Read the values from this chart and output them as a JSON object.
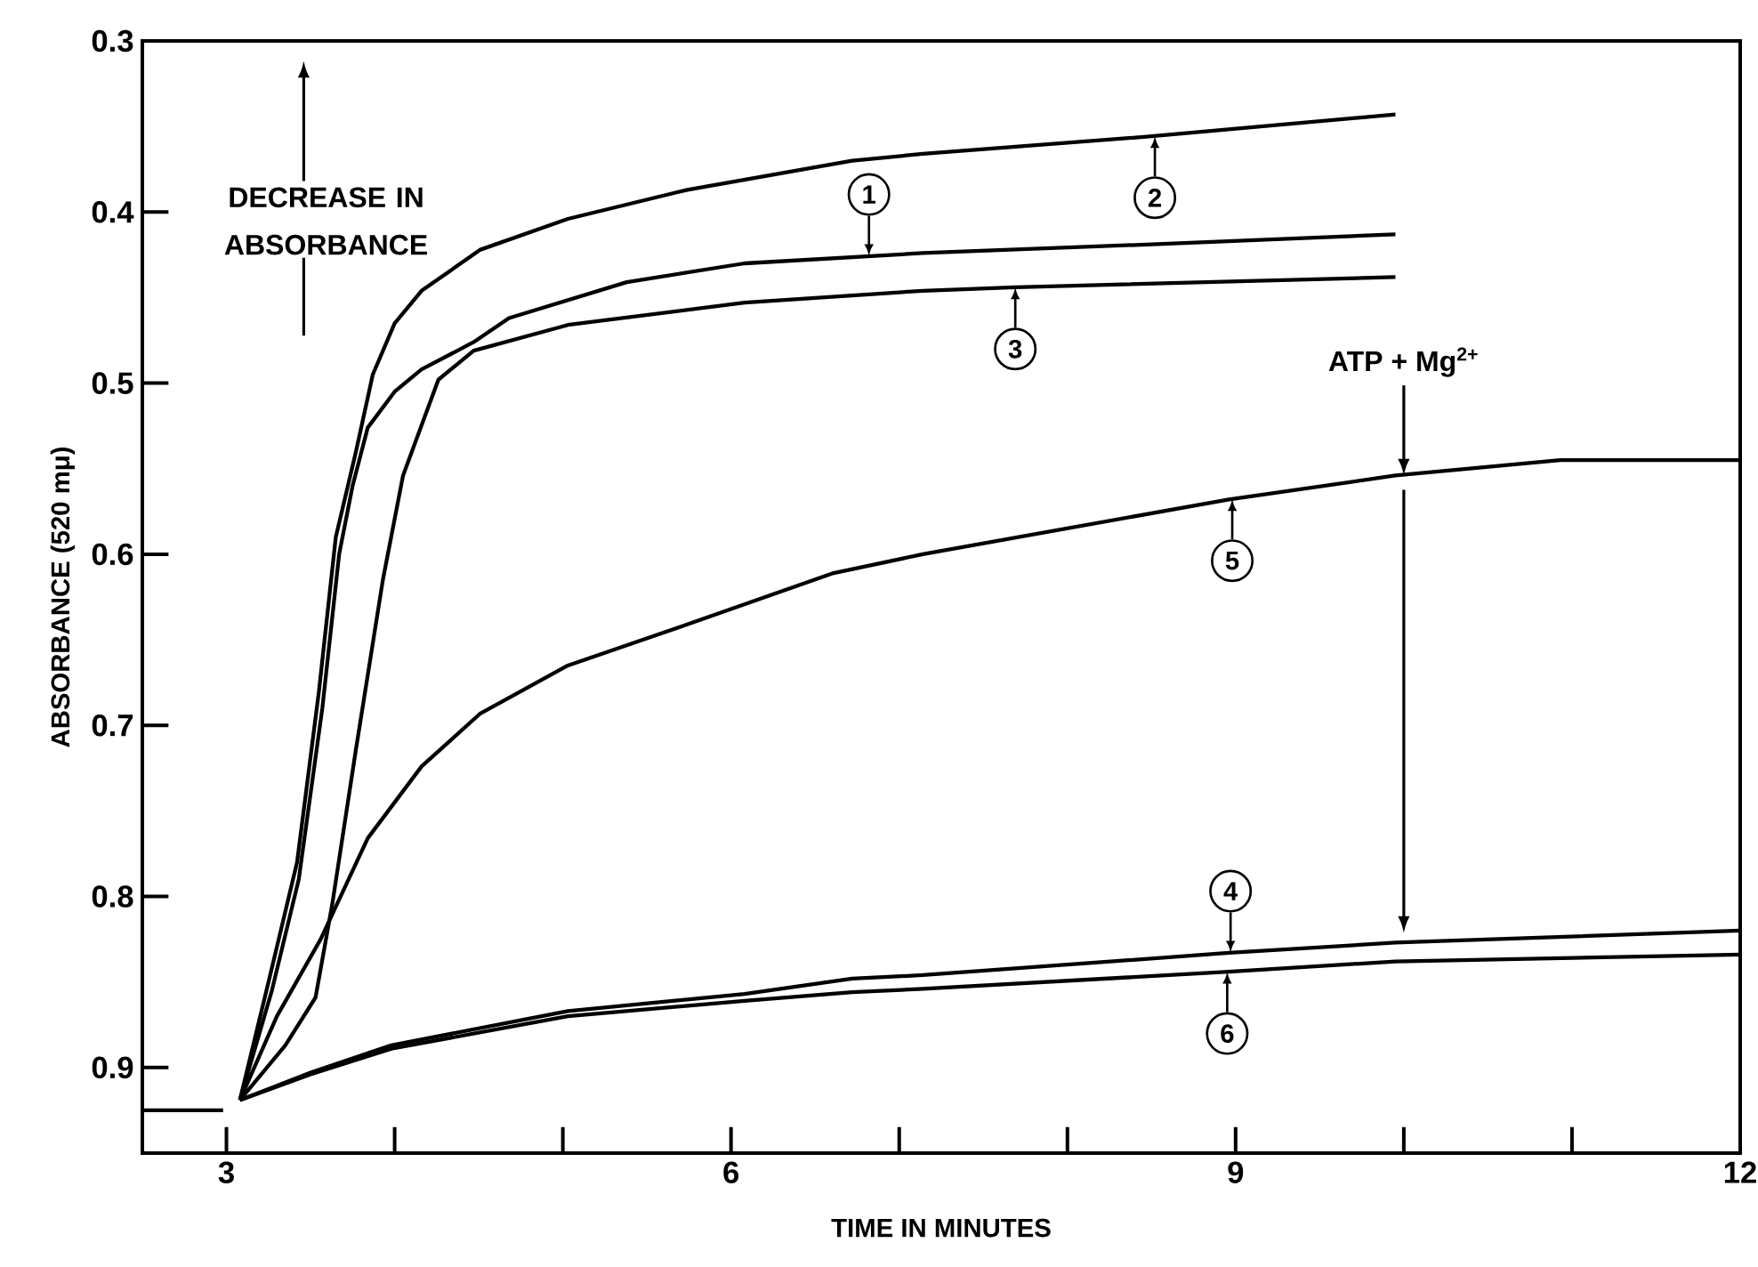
{
  "chart_data": {
    "type": "line",
    "xlabel": "TIME IN MINUTES",
    "ylabel": "ABSORBANCE (520 mμ)",
    "xlim": [
      2.5,
      12
    ],
    "ylim": [
      0.95,
      0.3
    ],
    "xticks": [
      3,
      {
        "value": 4,
        "label": null
      },
      {
        "value": 5,
        "label": null
      },
      6,
      {
        "value": 7,
        "label": null
      },
      {
        "value": 8,
        "label": null
      },
      9,
      {
        "value": 10,
        "label": null
      },
      {
        "value": 11,
        "label": null
      },
      12
    ],
    "yticks": [
      0.3,
      0.4,
      0.5,
      0.6,
      0.7,
      0.8,
      0.9
    ],
    "line_style": "solid",
    "grid": false,
    "legend": "center",
    "annotations": [
      "DECREASE IN ABSORBANCE",
      {
        "text": "ATP + Mg$^{2+}$",
        "x": 10,
        "y": 0.554
      }
    ],
    "series": [
      {
        "name": "1",
        "color": "#000000",
        "x": [
          3.08,
          3.27,
          3.43,
          3.57,
          3.67,
          3.75,
          3.84,
          4.0,
          4.16,
          4.47,
          4.68,
          5.38,
          6.08,
          7.14,
          8.47,
          9.95
        ],
        "values": [
          0.919,
          0.855,
          0.79,
          0.69,
          0.6,
          0.56,
          0.526,
          0.505,
          0.492,
          0.476,
          0.462,
          0.441,
          0.43,
          0.424,
          0.419,
          0.413
        ]
      },
      {
        "name": "2",
        "color": "#000000",
        "x": [
          3.08,
          3.25,
          3.42,
          3.55,
          3.65,
          3.77,
          3.87,
          4.0,
          4.16,
          4.51,
          5.03,
          5.74,
          6.72,
          7.14,
          8.47,
          9.95
        ],
        "values": [
          0.919,
          0.85,
          0.78,
          0.68,
          0.59,
          0.54,
          0.495,
          0.465,
          0.446,
          0.422,
          0.404,
          0.387,
          0.37,
          0.366,
          0.356,
          0.343
        ]
      },
      {
        "name": "3",
        "color": "#000000",
        "x": [
          3.08,
          3.35,
          3.53,
          3.63,
          3.77,
          3.93,
          4.05,
          4.26,
          4.47,
          5.03,
          6.08,
          7.14,
          7.69,
          9.95
        ],
        "values": [
          0.919,
          0.887,
          0.859,
          0.804,
          0.714,
          0.615,
          0.554,
          0.498,
          0.481,
          0.466,
          0.453,
          0.446,
          0.444,
          0.438
        ]
      },
      {
        "name": "4",
        "color": "#000000",
        "x": [
          3.08,
          3.5,
          3.98,
          5.03,
          6.08,
          6.72,
          7.14,
          8.96,
          9.95,
          12
        ],
        "values": [
          0.919,
          0.903,
          0.887,
          0.867,
          0.857,
          0.848,
          0.846,
          0.833,
          0.827,
          0.82
        ]
      },
      {
        "name": "5",
        "color": "#000000",
        "x": [
          3.08,
          3.3,
          3.56,
          3.84,
          4.16,
          4.51,
          5.03,
          5.74,
          6.61,
          7.14,
          8.96,
          9.95,
          10.93,
          12
        ],
        "values": [
          0.919,
          0.87,
          0.825,
          0.766,
          0.724,
          0.693,
          0.665,
          0.641,
          0.611,
          0.6,
          0.568,
          0.554,
          0.545,
          0.545
        ]
      },
      {
        "name": "6",
        "color": "#000000",
        "x": [
          3.08,
          3.5,
          3.98,
          5.03,
          6.08,
          6.72,
          7.14,
          8.96,
          9.95,
          12
        ],
        "values": [
          0.919,
          0.904,
          0.889,
          0.87,
          0.861,
          0.856,
          0.854,
          0.844,
          0.838,
          0.834
        ]
      },
      {
        "color": "#000000",
        "x": [
          2.5,
          2.98
        ],
        "values": [
          0.925,
          0.925
        ]
      }
    ]
  }
}
